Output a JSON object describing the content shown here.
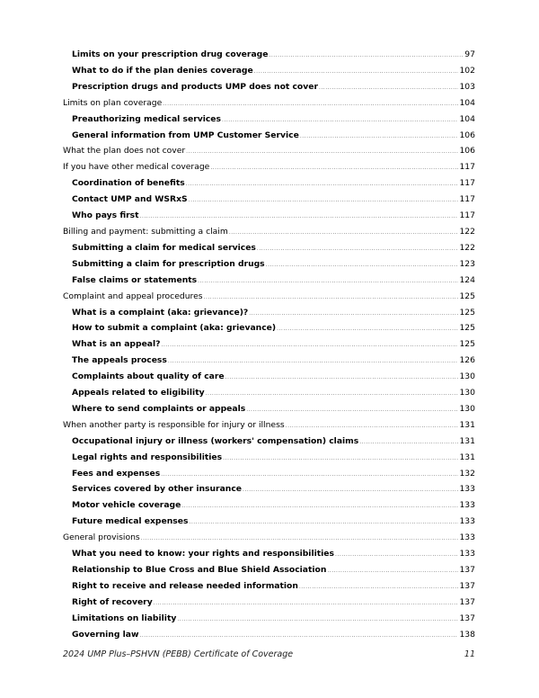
{
  "toc": [
    {
      "level": 1,
      "title": "Limits on your prescription drug coverage",
      "page": "97"
    },
    {
      "level": 1,
      "title": "What to do if the plan denies coverage",
      "page": "102"
    },
    {
      "level": 1,
      "title": "Prescription drugs and products UMP does not cover",
      "page": "103"
    },
    {
      "level": 0,
      "title": "Limits on plan coverage",
      "page": "104"
    },
    {
      "level": 1,
      "title": "Preauthorizing medical services",
      "page": "104"
    },
    {
      "level": 1,
      "title": "General information from UMP Customer Service",
      "page": "106"
    },
    {
      "level": 0,
      "title": "What the plan does not cover",
      "page": "106"
    },
    {
      "level": 0,
      "title": "If you have other medical coverage",
      "page": "117"
    },
    {
      "level": 1,
      "title": "Coordination of benefits",
      "page": "117"
    },
    {
      "level": 1,
      "title": "Contact UMP and WSRxS",
      "page": "117"
    },
    {
      "level": 1,
      "title": "Who pays first",
      "page": "117"
    },
    {
      "level": 0,
      "title": "Billing and payment: submitting a claim",
      "page": "122"
    },
    {
      "level": 1,
      "title": "Submitting a claim for medical services",
      "page": "122"
    },
    {
      "level": 1,
      "title": "Submitting a claim for prescription drugs",
      "page": "123"
    },
    {
      "level": 1,
      "title": "False claims or statements",
      "page": "124"
    },
    {
      "level": 0,
      "title": "Complaint and appeal procedures",
      "page": "125"
    },
    {
      "level": 1,
      "title": "What is a complaint (aka: grievance)?",
      "page": "125"
    },
    {
      "level": 1,
      "title": "How to submit a complaint (aka: grievance)",
      "page": "125"
    },
    {
      "level": 1,
      "title": "What is an appeal?",
      "page": "125"
    },
    {
      "level": 1,
      "title": "The appeals process",
      "page": "126"
    },
    {
      "level": 1,
      "title": "Complaints about quality of care",
      "page": "130"
    },
    {
      "level": 1,
      "title": "Appeals related to eligibility",
      "page": "130"
    },
    {
      "level": 1,
      "title": "Where to send complaints or appeals",
      "page": "130"
    },
    {
      "level": 0,
      "title": "When another party is responsible for injury or illness",
      "page": "131"
    },
    {
      "level": 1,
      "title": "Occupational injury or illness (workers' compensation) claims",
      "page": "131"
    },
    {
      "level": 1,
      "title": "Legal rights and responsibilities",
      "page": "131"
    },
    {
      "level": 1,
      "title": "Fees and expenses",
      "page": "132"
    },
    {
      "level": 1,
      "title": "Services covered by other insurance",
      "page": "133"
    },
    {
      "level": 1,
      "title": "Motor vehicle coverage",
      "page": "133"
    },
    {
      "level": 1,
      "title": "Future medical expenses",
      "page": "133"
    },
    {
      "level": 0,
      "title": "General provisions",
      "page": "133"
    },
    {
      "level": 1,
      "title": "What you need to know: your rights and responsibilities",
      "page": "133"
    },
    {
      "level": 1,
      "title": "Relationship to Blue Cross and Blue Shield Association",
      "page": "137"
    },
    {
      "level": 1,
      "title": "Right to receive and release needed information",
      "page": "137"
    },
    {
      "level": 1,
      "title": "Right of recovery",
      "page": "137"
    },
    {
      "level": 1,
      "title": "Limitations on liability",
      "page": "137"
    },
    {
      "level": 1,
      "title": "Governing law",
      "page": "138"
    }
  ],
  "footer": {
    "title": "2024 UMP Plus–PSHVN (PEBB) Certificate of Coverage",
    "page_number": "11"
  }
}
